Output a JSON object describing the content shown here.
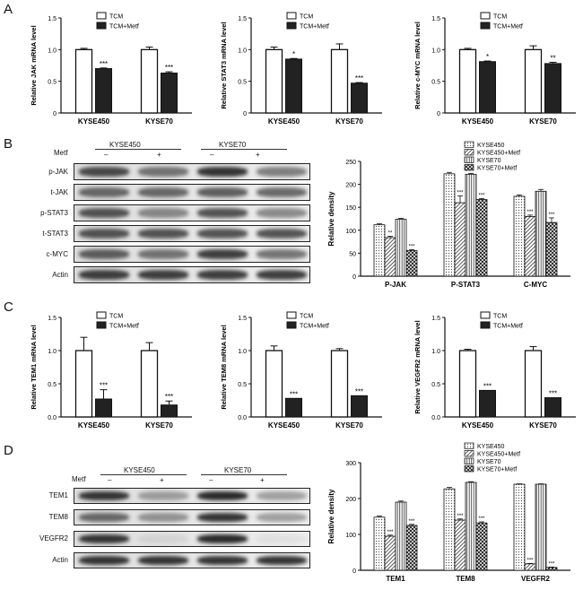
{
  "panels": {
    "A": "A",
    "B": "B",
    "C": "C",
    "D": "D"
  },
  "colors": {
    "tcm": "#ffffff",
    "metf": "#222222",
    "stroke": "#111111"
  },
  "mrna_charts": [
    {
      "ylabel": "Relative JAK mRNA level",
      "legend": [
        "TCM",
        "TCM+Metf"
      ],
      "categories": [
        "KYSE450",
        "KYSE70"
      ],
      "ylim": [
        0,
        1.5
      ],
      "yticks": [
        "0",
        "0.5",
        "1.0",
        "1.5"
      ],
      "tcm": [
        1.0,
        1.0
      ],
      "tcm_err": [
        0.02,
        0.04
      ],
      "metf": [
        0.7,
        0.63
      ],
      "metf_err": [
        0.01,
        0.02
      ],
      "sig": [
        "***",
        "***"
      ]
    },
    {
      "ylabel": "Relative STAT3 mRNA level",
      "legend": [
        "TCM",
        "TCM+Metf"
      ],
      "categories": [
        "KYSE450",
        "KYSE70"
      ],
      "ylim": [
        0,
        1.5
      ],
      "yticks": [
        "0",
        "0.5",
        "1.0",
        "1.5"
      ],
      "tcm": [
        1.0,
        1.0
      ],
      "tcm_err": [
        0.04,
        0.09
      ],
      "metf": [
        0.85,
        0.47
      ],
      "metf_err": [
        0.01,
        0.01
      ],
      "sig": [
        "*",
        "***"
      ]
    },
    {
      "ylabel": "Relative c-MYC mRNA level",
      "legend": [
        "TCM",
        "TCM+Metf"
      ],
      "categories": [
        "KYSE450",
        "KYSE70"
      ],
      "ylim": [
        0,
        1.5
      ],
      "yticks": [
        "0",
        "0.5",
        "1.0",
        "1.5"
      ],
      "tcm": [
        1.0,
        1.0
      ],
      "tcm_err": [
        0.02,
        0.06
      ],
      "metf": [
        0.81,
        0.78
      ],
      "metf_err": [
        0.01,
        0.02
      ],
      "sig": [
        "*",
        "**"
      ]
    }
  ],
  "tem_charts": [
    {
      "ylabel": "Relative TEM1 mRNA level",
      "legend": [
        "TCM",
        "TCM+Metf"
      ],
      "categories": [
        "KYSE450",
        "KYSE70"
      ],
      "ylim": [
        0,
        1.5
      ],
      "yticks": [
        "0.0",
        "0.5",
        "1.0",
        "1.5"
      ],
      "tcm": [
        1.0,
        1.0
      ],
      "tcm_err": [
        0.2,
        0.12
      ],
      "metf": [
        0.27,
        0.18
      ],
      "metf_err": [
        0.14,
        0.06
      ],
      "sig": [
        "***",
        "***"
      ]
    },
    {
      "ylabel": "Relative TEM8 mRNA level",
      "legend": [
        "TCM",
        "TCM+Metf"
      ],
      "categories": [
        "KYSE450",
        "KYSE70"
      ],
      "ylim": [
        0,
        1.5
      ],
      "yticks": [
        "0.0",
        "0.5",
        "1.0",
        "1.5"
      ],
      "tcm": [
        1.0,
        1.0
      ],
      "tcm_err": [
        0.07,
        0.03
      ],
      "metf": [
        0.28,
        0.32
      ],
      "metf_err": [
        0.0,
        0.0
      ],
      "sig": [
        "***",
        "***"
      ]
    },
    {
      "ylabel": "Relative VEGFR2 mRNA level",
      "legend": [
        "TCM",
        "TCM+Metf"
      ],
      "categories": [
        "KYSE450",
        "KYSE70"
      ],
      "ylim": [
        0,
        1.5
      ],
      "yticks": [
        "0.0",
        "0.5",
        "1.0",
        "1.5"
      ],
      "tcm": [
        1.0,
        1.0
      ],
      "tcm_err": [
        0.02,
        0.06
      ],
      "metf": [
        0.4,
        0.29
      ],
      "metf_err": [
        0.0,
        0.0
      ],
      "sig": [
        "***",
        "***"
      ]
    }
  ],
  "density_charts": [
    {
      "ylabel": "Relative density",
      "legend": [
        "KYSE450",
        "KYSE450+Metf",
        "KYSE70",
        "KYSE70+Metf"
      ],
      "categories": [
        "P-JAK",
        "P-STAT3",
        "C-MYC"
      ],
      "ylim": [
        0,
        250
      ],
      "yticks": [
        "0",
        "50",
        "100",
        "150",
        "200",
        "250"
      ],
      "series": [
        {
          "values": [
            112,
            223,
            174
          ],
          "err": [
            2,
            3,
            3
          ]
        },
        {
          "values": [
            84,
            160,
            130
          ],
          "err": [
            3,
            15,
            3
          ]
        },
        {
          "values": [
            124,
            222,
            185
          ],
          "err": [
            2,
            2,
            4
          ]
        },
        {
          "values": [
            56,
            167,
            117
          ],
          "err": [
            2,
            2,
            10
          ]
        }
      ],
      "sig": [
        [
          "**",
          "***"
        ],
        [
          "***",
          "***"
        ],
        [
          "***",
          "***"
        ]
      ]
    },
    {
      "ylabel": "Relative density",
      "legend": [
        "KYSE450",
        "KYSE450+Metf",
        "KYSE70",
        "KYSE70+Metf"
      ],
      "categories": [
        "TEM1",
        "TEM8",
        "VEGFR2"
      ],
      "ylim": [
        0,
        300
      ],
      "yticks": [
        "0",
        "100",
        "200",
        "300"
      ],
      "series": [
        {
          "values": [
            148,
            227,
            240
          ],
          "err": [
            3,
            4,
            1
          ]
        },
        {
          "values": [
            95,
            140,
            18
          ],
          "err": [
            3,
            3,
            1
          ]
        },
        {
          "values": [
            190,
            245,
            240
          ],
          "err": [
            3,
            2,
            1
          ]
        },
        {
          "values": [
            125,
            132,
            8
          ],
          "err": [
            3,
            3,
            1
          ]
        }
      ],
      "sig": [
        [
          "***",
          "***"
        ],
        [
          "***",
          "***"
        ],
        [
          "***",
          "***"
        ]
      ]
    }
  ],
  "blot_B": {
    "metf": "Metf",
    "cells": [
      "KYSE450",
      "KYSE70"
    ],
    "signs": [
      "–",
      "+",
      "–",
      "+"
    ],
    "rows": [
      "p-JAK",
      "t-JAK",
      "p-STAT3",
      "t-STAT3",
      "c-MYC",
      "Actin"
    ]
  },
  "blot_D": {
    "metf": "Metf",
    "cells": [
      "KYSE450",
      "KYSE70"
    ],
    "signs": [
      "–",
      "+",
      "–",
      "+"
    ],
    "rows": [
      "TEM1",
      "TEM8",
      "VEGFR2",
      "Actin"
    ]
  }
}
